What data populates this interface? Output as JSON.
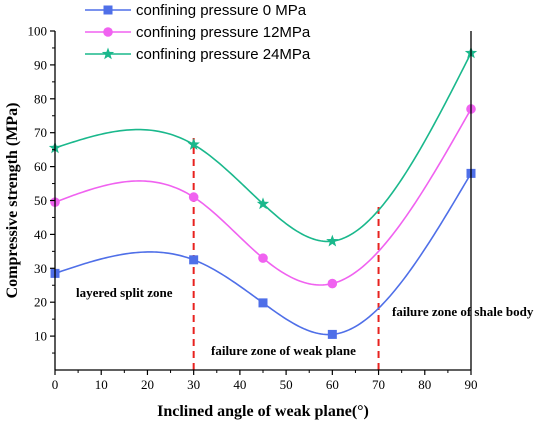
{
  "chart_data": {
    "type": "line",
    "xlabel": "Inclined angle of weak plane(°)",
    "ylabel": "Compressive strength (MPa)",
    "xlim": [
      0,
      90
    ],
    "ylim": [
      0,
      100
    ],
    "x_ticks": [
      0,
      10,
      20,
      30,
      40,
      50,
      60,
      70,
      80,
      90
    ],
    "y_ticks": [
      10,
      20,
      30,
      40,
      50,
      60,
      70,
      80,
      90,
      100
    ],
    "grid": false,
    "legend_position": "top-left outside plot",
    "x": [
      0,
      30,
      45,
      60,
      90
    ],
    "series": [
      {
        "name": "confining pressure  0 MPa",
        "marker": "square",
        "color": "#4f6fe8",
        "values": [
          28.5,
          32.5,
          19.8,
          10.5,
          58
        ]
      },
      {
        "name": "confining pressure 12MPa",
        "marker": "circle",
        "color": "#f062f0",
        "values": [
          49.5,
          51,
          33,
          25.5,
          77
        ]
      },
      {
        "name": "confining pressure 24MPa",
        "marker": "star",
        "color": "#1ab88c",
        "values": [
          65.5,
          66.5,
          49,
          38,
          93.5
        ]
      }
    ],
    "zone_dividers": [
      30,
      70
    ],
    "annotations": [
      "layered split zone",
      "failure zone of weak plane",
      "failure zone of shale body"
    ]
  }
}
